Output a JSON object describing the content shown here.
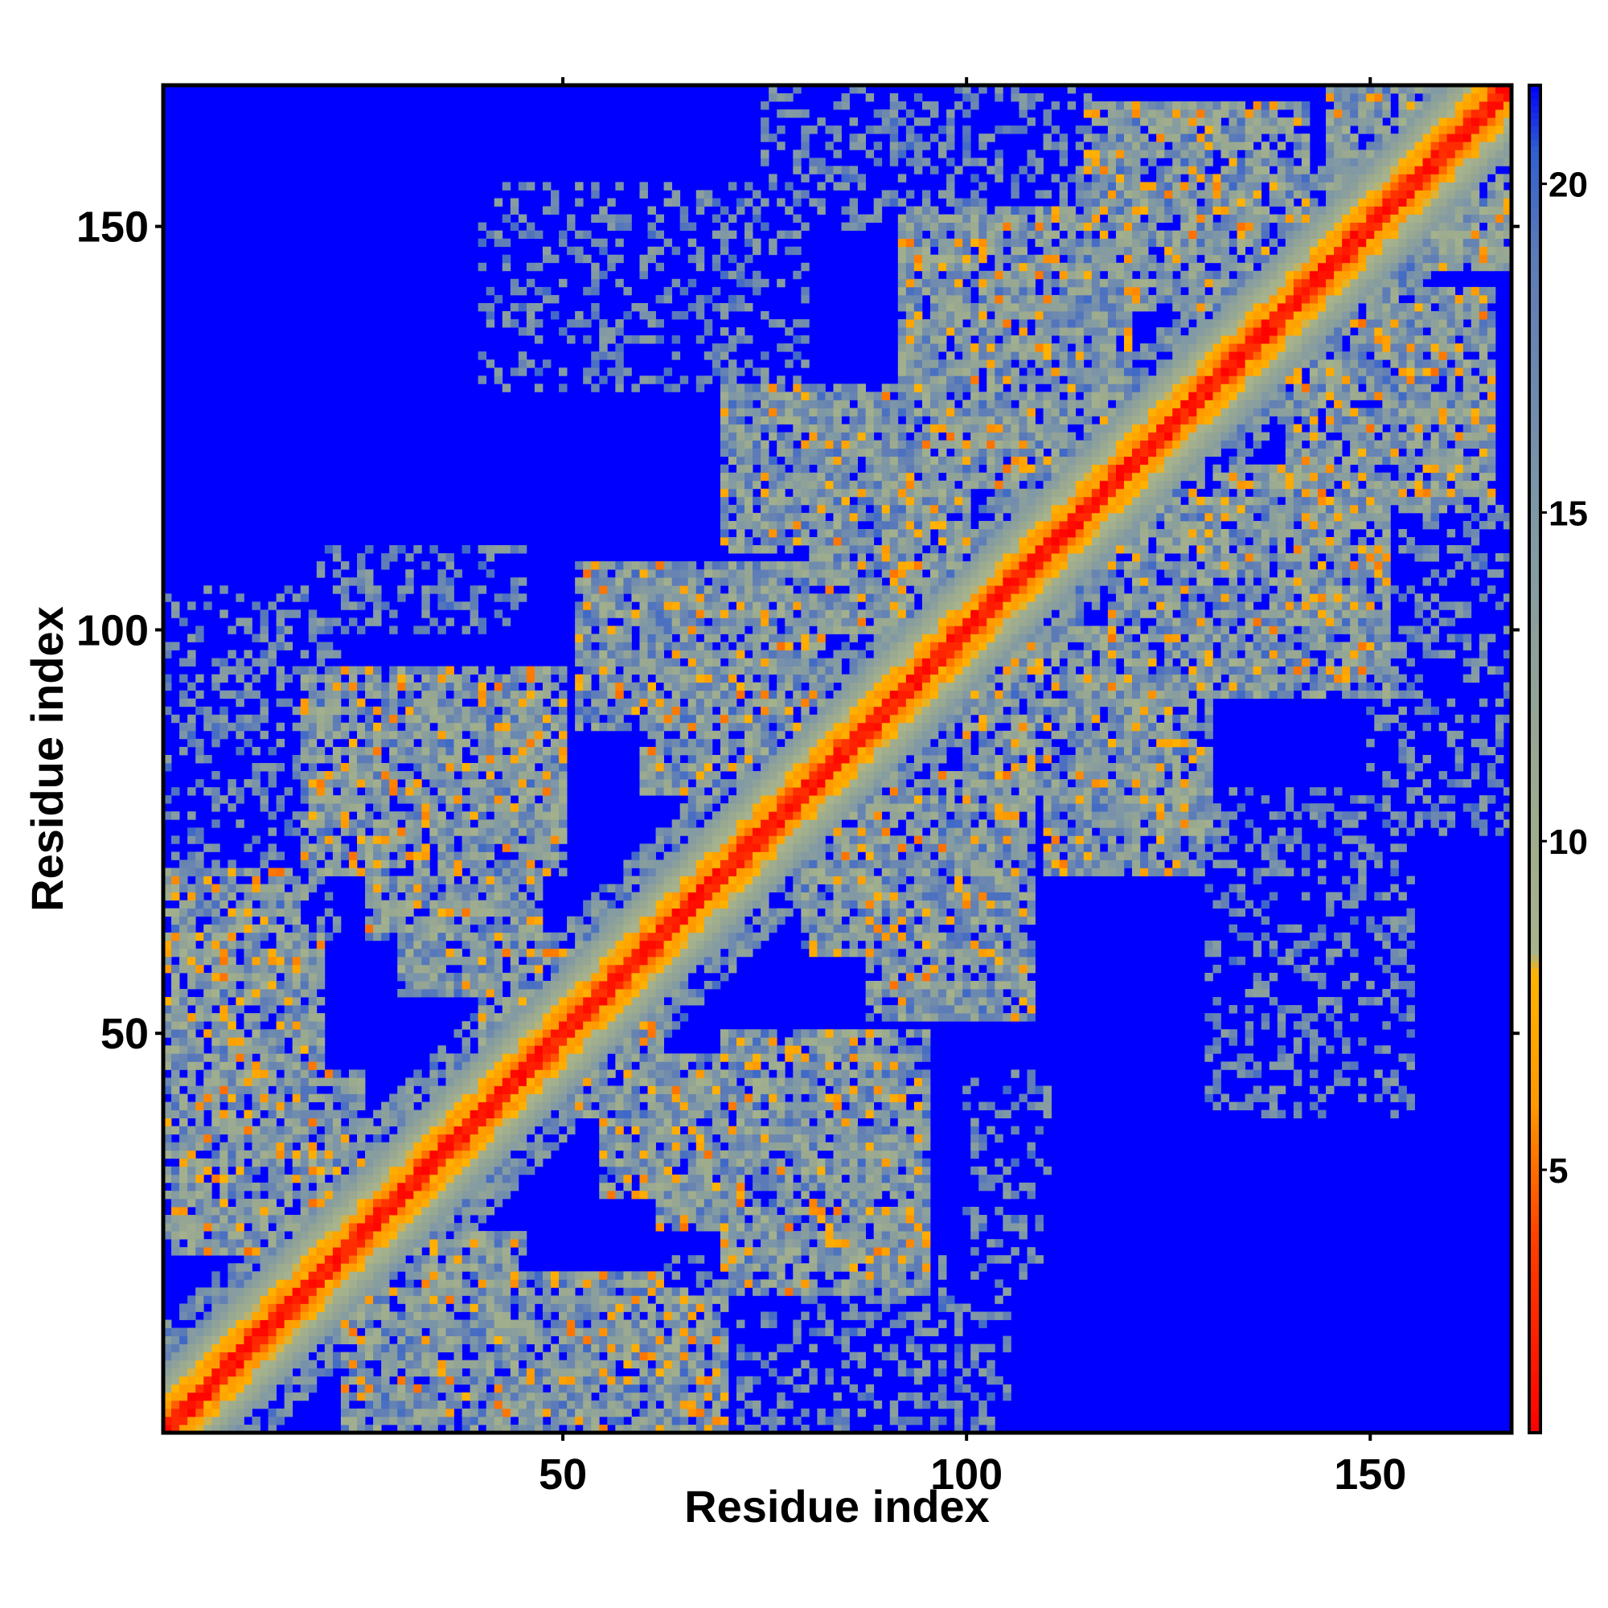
{
  "chart_data": {
    "type": "heatmap",
    "title": "",
    "xlabel": "Residue index",
    "ylabel": "Residue index",
    "n_residues": 167,
    "xlim": [
      1,
      167
    ],
    "ylim": [
      1,
      167
    ],
    "x_ticks": [
      50,
      100,
      150
    ],
    "y_ticks": [
      50,
      100,
      150
    ],
    "x_tick_labels": [
      "50",
      "100",
      "150"
    ],
    "y_tick_labels": [
      "50",
      "100",
      "150"
    ],
    "values_description_unit": "distance",
    "colorbar": {
      "min": 1,
      "max": 21.5,
      "ticks": [
        5,
        10,
        15,
        20
      ],
      "tick_labels": [
        "5",
        "10",
        "15",
        "20"
      ],
      "colors": [
        {
          "value": 1,
          "color": "#ff0000"
        },
        {
          "value": 4,
          "color": "#ff4000"
        },
        {
          "value": 6,
          "color": "#ff9900"
        },
        {
          "value": 8,
          "color": "#ffb300"
        },
        {
          "value": 8.3,
          "color": "#a8b48c"
        },
        {
          "value": 11,
          "color": "#9aa990"
        },
        {
          "value": 15,
          "color": "#7f98a6"
        },
        {
          "value": 19,
          "color": "#5b7ab8"
        },
        {
          "value": 20.5,
          "color": "#3060d0"
        },
        {
          "value": 21.5,
          "color": "#0000ff"
        }
      ]
    },
    "background_color": "#0000ff",
    "diagonal_band_halfwidth_residues": 8,
    "contact_blocks": [
      {
        "x": [
          1,
          20
        ],
        "y": [
          37,
          62
        ]
      },
      {
        "x": [
          23,
          45
        ],
        "y": [
          1,
          25
        ]
      },
      {
        "x": [
          26,
          45
        ],
        "y": [
          62,
          83
        ]
      },
      {
        "x": [
          40,
          60
        ],
        "y": [
          45,
          62
        ]
      },
      {
        "x": [
          50,
          70
        ],
        "y": [
          1,
          18
        ]
      },
      {
        "x": [
          55,
          78
        ],
        "y": [
          30,
          47
        ]
      },
      {
        "x": [
          60,
          82
        ],
        "y": [
          80,
          100
        ]
      },
      {
        "x": [
          70,
          95
        ],
        "y": [
          18,
          50
        ]
      },
      {
        "x": [
          80,
          100
        ],
        "y": [
          100,
          120
        ]
      },
      {
        "x": [
          88,
          108
        ],
        "y": [
          52,
          82
        ]
      },
      {
        "x": [
          97,
          120
        ],
        "y": [
          118,
          145
        ]
      },
      {
        "x": [
          110,
          130
        ],
        "y": [
          70,
          100
        ]
      },
      {
        "x": [
          115,
          135
        ],
        "y": [
          140,
          165
        ]
      },
      {
        "x": [
          130,
          152
        ],
        "y": [
          92,
          118
        ]
      },
      {
        "x": [
          142,
          165
        ],
        "y": [
          118,
          142
        ]
      },
      {
        "x": [
          145,
          167
        ],
        "y": [
          148,
          167
        ]
      }
    ],
    "sparse_regions": [
      {
        "x": [
          1,
          22
        ],
        "y": [
          62,
          105
        ]
      },
      {
        "x": [
          40,
          80
        ],
        "y": [
          130,
          155
        ]
      },
      {
        "x": [
          75,
          115
        ],
        "y": [
          150,
          167
        ]
      },
      {
        "x": [
          100,
          110
        ],
        "y": [
          20,
          45
        ]
      },
      {
        "x": [
          130,
          150
        ],
        "y": [
          40,
          70
        ]
      },
      {
        "x": [
          150,
          167
        ],
        "y": [
          85,
          100
        ]
      }
    ],
    "grid": false,
    "legend": "colorbar-right"
  }
}
